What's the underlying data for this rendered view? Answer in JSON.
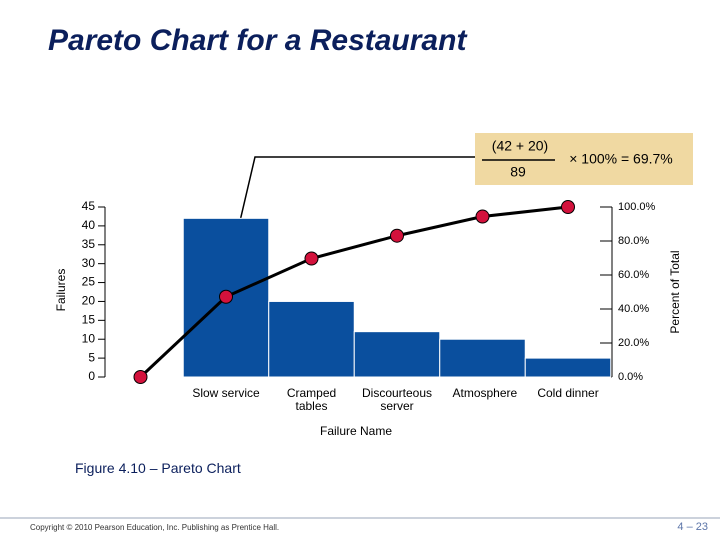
{
  "title": "Pareto Chart for a Restaurant",
  "chart_data": {
    "type": "pareto",
    "xlabel": "Failure Name",
    "ylabel": "Failures",
    "y2label": "Percent of Total",
    "categories": [
      null,
      "Slow service",
      "Cramped tables",
      "Discourteous server",
      "Atmosphere",
      "Cold dinner"
    ],
    "series": [
      {
        "type": "bar",
        "color": "#0a4f9e",
        "values": [
          null,
          42,
          20,
          12,
          10,
          5
        ]
      },
      {
        "type": "line",
        "axis": "y2",
        "color": "#000000",
        "marker_color": "#d3123c",
        "values": [
          0,
          47.2,
          69.7,
          83.1,
          94.4,
          100
        ]
      }
    ],
    "ylim": [
      0,
      45
    ],
    "yticks": [
      0,
      5,
      10,
      15,
      20,
      25,
      30,
      35,
      40,
      45
    ],
    "y2lim": [
      0,
      100
    ],
    "y2ticks": [
      {
        "value": 0,
        "label": "0.0%"
      },
      {
        "value": 20,
        "label": "20.0%"
      },
      {
        "value": 40,
        "label": "40.0%"
      },
      {
        "value": 60,
        "label": "60.0%"
      },
      {
        "value": 80,
        "label": "80.0%"
      },
      {
        "value": 100,
        "label": "100.0%"
      }
    ],
    "annotation": {
      "numerator": "(42 + 20)",
      "denominator": "89",
      "result": "× 100% = 69.7%"
    }
  },
  "caption": "Figure 4.10 – Pareto Chart",
  "copyright": "Copyright © 2010 Pearson Education, Inc. Publishing as Prentice Hall.",
  "page_number": "4 – 23"
}
